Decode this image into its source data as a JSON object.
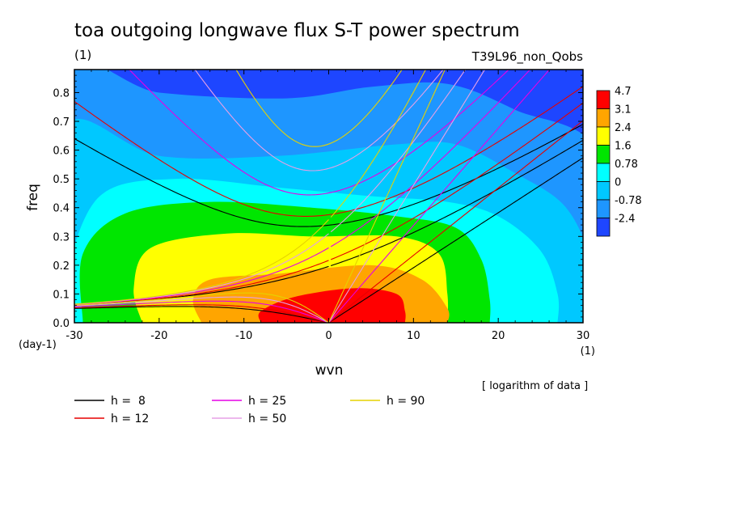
{
  "chart_data": {
    "type": "heatmap",
    "title": "toa outgoing longwave flux S-T power spectrum",
    "units_label": "(1)",
    "experiment": "T39L96_non_Qobs",
    "xlabel": "wvn",
    "ylabel": "freq",
    "x_units": "(1)",
    "y_units": "(day-1)",
    "xlim": [
      -30,
      30
    ],
    "ylim": [
      0,
      0.88
    ],
    "x_ticks": [
      "-30",
      "-20",
      "-10",
      "0",
      "10",
      "20",
      "30"
    ],
    "x_tick_values": [
      -30,
      -20,
      -10,
      0,
      10,
      20,
      30
    ],
    "y_ticks": [
      "0.0",
      "0.1",
      "0.2",
      "0.3",
      "0.4",
      "0.5",
      "0.6",
      "0.7",
      "0.8"
    ],
    "y_tick_values": [
      0,
      0.1,
      0.2,
      0.3,
      0.4,
      0.5,
      0.6,
      0.7,
      0.8
    ],
    "note": "[ logarithm of data ]",
    "colorbar": {
      "levels": [
        "4.7",
        "3.1",
        "2.4",
        "1.6",
        "0.78",
        "0",
        "-0.78",
        "-2.4"
      ],
      "colors": [
        "#ff0000",
        "#ffa500",
        "#ffff00",
        "#00e600",
        "#00ffff",
        "#00c8ff",
        "#1e96ff",
        "#1e46ff"
      ]
    },
    "dispersion_curves": [
      {
        "label": "h =  8",
        "h": 8,
        "color": "#000000"
      },
      {
        "label": "h = 12",
        "h": 12,
        "color": "#e60000"
      },
      {
        "label": "h = 25",
        "h": 25,
        "color": "#e600e6"
      },
      {
        "label": "h = 50",
        "h": 50,
        "color": "#e6a0e6"
      },
      {
        "label": "h = 90",
        "h": 90,
        "color": "#e6d200"
      }
    ]
  }
}
